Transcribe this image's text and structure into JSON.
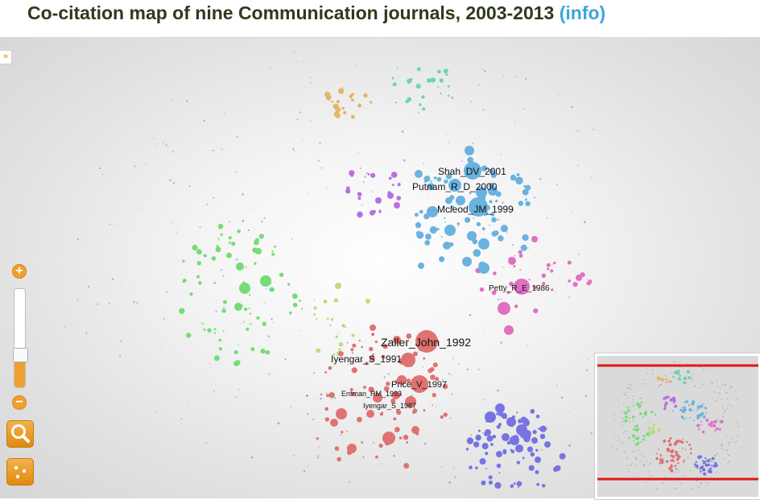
{
  "header": {
    "title": "Co-citation map of nine Communication journals, 2003-2013",
    "info_link": "(info)"
  },
  "colors": {
    "title": "#2d3a1c",
    "info_link": "#3aa6dc",
    "control_accent": "#f0a030",
    "viewport_frame": "#e01818"
  },
  "controls": {
    "panel_toggle": "»",
    "zoom_in": "+",
    "zoom_out": "−",
    "zoom_level": 0.3,
    "search_icon": "magnifier-icon",
    "layout_icon": "dots-icon"
  },
  "clusters": [
    {
      "name": "orange",
      "color": "#e3b46a"
    },
    {
      "name": "teal",
      "color": "#6fd4b4"
    },
    {
      "name": "purple",
      "color": "#b670e2"
    },
    {
      "name": "blue",
      "color": "#6ab2e0"
    },
    {
      "name": "green",
      "color": "#76dc76"
    },
    {
      "name": "lime",
      "color": "#bedc7c"
    },
    {
      "name": "pink",
      "color": "#e070c2"
    },
    {
      "name": "red",
      "color": "#e07272"
    },
    {
      "name": "indigo",
      "color": "#7674e2"
    }
  ],
  "node_labels": [
    {
      "text": "Shah_DV_2001",
      "size": "medium"
    },
    {
      "text": "Putnam_R_D_2000",
      "size": "medium"
    },
    {
      "text": "Mcleod_JM_1999",
      "size": "medium"
    },
    {
      "text": "Petty_R_E_1986",
      "size": "small"
    },
    {
      "text": "Zaller_John_1992",
      "size": "large"
    },
    {
      "text": "Iyengar_S_1991",
      "size": "medium"
    },
    {
      "text": "Price_V_1997",
      "size": "medium"
    },
    {
      "text": "Entman_RM_1993",
      "size": "tiny"
    },
    {
      "text": "Iyengar_S_1987",
      "size": "tiny"
    }
  ]
}
